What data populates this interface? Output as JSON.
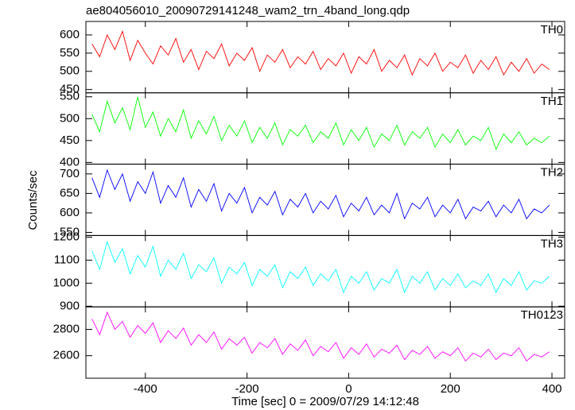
{
  "chart_data": {
    "type": "line",
    "title": "ae804056010_20090729141248_wam2_trn_4band_long.qdp",
    "xlabel": "Time [sec] 0 = 2009/07/29 14:12:48",
    "ylabel": "Counts/sec",
    "xlim": [
      -517,
      425
    ],
    "xticks": [
      -400,
      -200,
      0,
      200,
      400
    ],
    "x": [
      -505,
      -490,
      -475,
      -460,
      -445,
      -430,
      -415,
      -400,
      -385,
      -370,
      -355,
      -340,
      -325,
      -310,
      -295,
      -280,
      -265,
      -250,
      -235,
      -220,
      -205,
      -190,
      -175,
      -160,
      -145,
      -130,
      -115,
      -100,
      -85,
      -70,
      -55,
      -40,
      -25,
      -10,
      5,
      20,
      35,
      50,
      65,
      80,
      95,
      110,
      125,
      140,
      155,
      170,
      185,
      200,
      215,
      230,
      245,
      260,
      275,
      290,
      305,
      320,
      335,
      350,
      365,
      380,
      395
    ],
    "panels": [
      {
        "ylim": [
          441,
          637
        ],
        "yticks": [
          450,
          500,
          550,
          600
        ],
        "series": [
          {
            "name": "TH0",
            "color": "#ff0000",
            "values": [
              575,
              540,
              600,
              560,
              610,
              530,
              585,
              550,
              520,
              570,
              545,
              590,
              525,
              560,
              505,
              555,
              535,
              575,
              515,
              550,
              530,
              565,
              500,
              545,
              525,
              560,
              510,
              540,
              520,
              555,
              505,
              535,
              515,
              550,
              495,
              540,
              520,
              560,
              500,
              530,
              510,
              545,
              490,
              535,
              515,
              550,
              500,
              525,
              510,
              545,
              495,
              530,
              505,
              540,
              490,
              525,
              500,
              535,
              495,
              520,
              505
            ]
          }
        ]
      },
      {
        "ylim": [
          396,
          559
        ],
        "yticks": [
          400,
          450,
          500,
          550
        ],
        "series": [
          {
            "name": "TH1",
            "color": "#00ff00",
            "values": [
              510,
              470,
              540,
              490,
              525,
              475,
              550,
              480,
              515,
              460,
              500,
              470,
              520,
              455,
              495,
              465,
              505,
              450,
              485,
              460,
              495,
              445,
              480,
              455,
              490,
              440,
              475,
              460,
              485,
              445,
              470,
              455,
              490,
              440,
              475,
              450,
              480,
              435,
              465,
              450,
              485,
              440,
              470,
              455,
              480,
              435,
              465,
              445,
              475,
              440,
              460,
              450,
              480,
              430,
              465,
              445,
              470,
              440,
              455,
              445,
              460
            ]
          }
        ]
      },
      {
        "ylim": [
          542,
          725
        ],
        "yticks": [
          550,
          600,
          650,
          700
        ],
        "series": [
          {
            "name": "TH2",
            "color": "#0000ff",
            "values": [
              690,
              640,
              710,
              660,
              700,
              630,
              680,
              650,
              705,
              625,
              670,
              640,
              690,
              615,
              660,
              630,
              675,
              605,
              650,
              625,
              665,
              600,
              640,
              620,
              655,
              595,
              635,
              615,
              650,
              600,
              630,
              610,
              645,
              590,
              625,
              605,
              640,
              595,
              620,
              600,
              650,
              585,
              625,
              610,
              640,
              590,
              620,
              600,
              635,
              585,
              615,
              605,
              630,
              590,
              620,
              600,
              635,
              585,
              610,
              600,
              620
            ]
          }
        ]
      },
      {
        "ylim": [
          897,
          1207
        ],
        "yticks": [
          900,
          1000,
          1100,
          1200
        ],
        "series": [
          {
            "name": "TH3",
            "color": "#00ffff",
            "values": [
              1140,
              1060,
              1180,
              1090,
              1150,
              1040,
              1120,
              1070,
              1160,
              1030,
              1100,
              1060,
              1130,
              1020,
              1080,
              1050,
              1110,
              1000,
              1070,
              1040,
              1090,
              990,
              1060,
              1030,
              1080,
              980,
              1050,
              1020,
              1070,
              990,
              1040,
              1010,
              1060,
              960,
              1030,
              1000,
              1050,
              970,
              1020,
              1000,
              1060,
              960,
              1030,
              1000,
              1050,
              970,
              1020,
              990,
              1040,
              980,
              1010,
              990,
              1040,
              960,
              1020,
              990,
              1050,
              970,
              1010,
              1000,
              1030
            ]
          }
        ]
      },
      {
        "ylim": [
          2429,
          2971
        ],
        "yticks": [
          2600,
          2800
        ],
        "series": [
          {
            "name": "TH0123",
            "color": "#ff00ff",
            "values": [
              2880,
              2760,
              2930,
              2800,
              2860,
              2740,
              2830,
              2770,
              2850,
              2700,
              2790,
              2730,
              2810,
              2680,
              2760,
              2700,
              2780,
              2650,
              2730,
              2680,
              2740,
              2620,
              2700,
              2660,
              2730,
              2610,
              2690,
              2640,
              2720,
              2600,
              2670,
              2630,
              2700,
              2580,
              2660,
              2610,
              2690,
              2590,
              2650,
              2620,
              2680,
              2570,
              2640,
              2610,
              2670,
              2580,
              2630,
              2600,
              2660,
              2560,
              2620,
              2590,
              2650,
              2570,
              2620,
              2600,
              2660,
              2560,
              2610,
              2590,
              2630
            ]
          }
        ]
      }
    ]
  }
}
